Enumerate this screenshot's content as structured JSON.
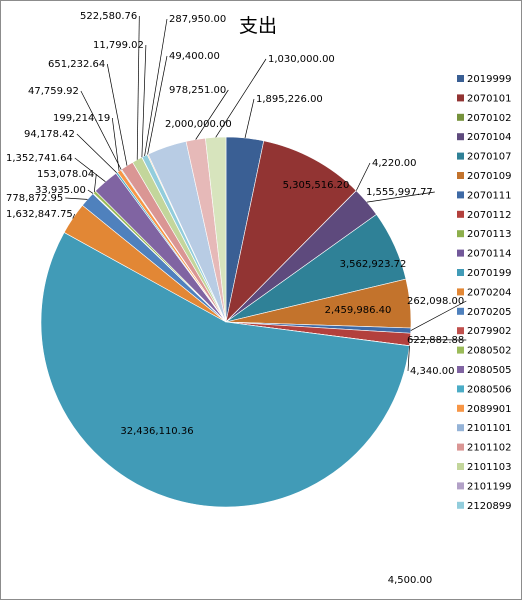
{
  "chart_data": {
    "type": "pie",
    "title": "支出",
    "legend_position": "right",
    "slices": [
      {
        "label": "2019999",
        "value": 1895226.0,
        "value_text": "1,895,226.00",
        "color": "#3a5f94"
      },
      {
        "label": "2070101",
        "value": 5305516.2,
        "value_text": "5,305,516.20",
        "color": "#923433"
      },
      {
        "label": "2070102",
        "value": 4220.0,
        "value_text": "4,220.00",
        "color": "#76923c"
      },
      {
        "label": "2070104",
        "value": 1555997.77,
        "value_text": "1,555,997.77",
        "color": "#5e4a7d"
      },
      {
        "label": "2070107",
        "value": 3562923.72,
        "value_text": "3,562,923.72",
        "color": "#2f8197"
      },
      {
        "label": "2070109",
        "value": 2459986.4,
        "value_text": "2,459,986.40",
        "color": "#c3732c"
      },
      {
        "label": "2070111",
        "value": 262098.0,
        "value_text": "262,098.00",
        "color": "#3e6aa6"
      },
      {
        "label": "2070112",
        "value": 622882.88,
        "value_text": "622,882.88",
        "color": "#b3403d"
      },
      {
        "label": "2070113",
        "value": 4340.0,
        "value_text": "4,340.00",
        "color": "#8daf4c"
      },
      {
        "label": "2070114",
        "value": 4500.0,
        "value_text": "4,500.00",
        "color": "#72589a"
      },
      {
        "label": "2070199",
        "value": 32436110.36,
        "value_text": "32,436,110.36",
        "color": "#419bb7"
      },
      {
        "label": "2070204",
        "value": 1632847.75,
        "value_text": "1,632,847.75",
        "color": "#e28735"
      },
      {
        "label": "2070205",
        "value": 778872.95,
        "value_text": "778,872.95",
        "color": "#4f81bd"
      },
      {
        "label": "2079902",
        "value": 33935.0,
        "value_text": "33,935.00",
        "color": "#c0504d"
      },
      {
        "label": "2080502",
        "value": 153078.04,
        "value_text": "153,078.04",
        "color": "#9bbb59"
      },
      {
        "label": "2080505",
        "value": 1352741.64,
        "value_text": "1,352,741.64",
        "color": "#8064a2"
      },
      {
        "label": "2080506",
        "value": 94178.42,
        "value_text": "94,178.42",
        "color": "#4bacc6"
      },
      {
        "label": "2089901",
        "value": 199214.19,
        "value_text": "199,214.19",
        "color": "#f79646"
      },
      {
        "label": "2101101",
        "value": 47759.92,
        "value_text": "47,759.92",
        "color": "#95b3d7"
      },
      {
        "label": "2101102",
        "value": 651232.64,
        "value_text": "651,232.64",
        "color": "#da9694"
      },
      {
        "label": "2101103",
        "value": 522580.76,
        "value_text": "522,580.76",
        "color": "#c3d69b"
      },
      {
        "label": "2101199",
        "value": 11799.02,
        "value_text": "11,799.02",
        "color": "#b2a1c7"
      },
      {
        "label": "2120899",
        "value": 287950.0,
        "value_text": "287,950.00",
        "color": "#92cddc"
      },
      {
        "label": "",
        "value": 49400.0,
        "value_text": "49,400.00",
        "color": "#fac090"
      },
      {
        "label": "",
        "value": 2000000.0,
        "value_text": "2,000,000.00",
        "color": "#b8cce4"
      },
      {
        "label": "",
        "value": 978251.0,
        "value_text": "978,251.00",
        "color": "#e6b9b8"
      },
      {
        "label": "",
        "value": 1030000.0,
        "value_text": "1,030,000.00",
        "color": "#d7e4bd"
      }
    ]
  }
}
